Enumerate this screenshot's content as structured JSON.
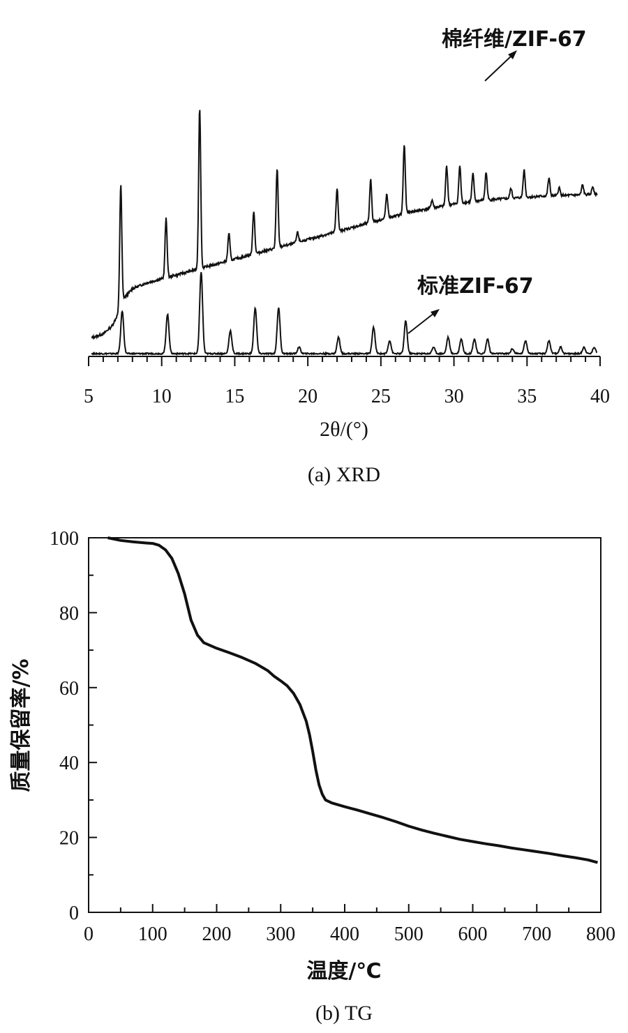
{
  "figure": {
    "caption_a": "(a)  XRD",
    "caption_b": "(b)  TG"
  },
  "chart_data": [
    {
      "type": "line",
      "title": "",
      "xlabel": "2θ/(°)",
      "ylabel": "",
      "xlim": [
        5,
        40
      ],
      "xticks": [
        5,
        10,
        15,
        20,
        25,
        30,
        35,
        40
      ],
      "yticks_shown": false,
      "grid": false,
      "series": [
        {
          "name": "棉纤维/ZIF-67",
          "baseline": [
            [
              5.2,
              0.02
            ],
            [
              6.0,
              0.04
            ],
            [
              6.6,
              0.08
            ],
            [
              7.0,
              0.14
            ],
            [
              7.4,
              0.22
            ],
            [
              8.0,
              0.27
            ],
            [
              9.0,
              0.3
            ],
            [
              10.5,
              0.33
            ],
            [
              12.0,
              0.36
            ],
            [
              13.5,
              0.39
            ],
            [
              15.0,
              0.42
            ],
            [
              16.5,
              0.45
            ],
            [
              18.0,
              0.48
            ],
            [
              19.5,
              0.51
            ],
            [
              21.0,
              0.54
            ],
            [
              22.5,
              0.57
            ],
            [
              24.0,
              0.6
            ],
            [
              25.5,
              0.63
            ],
            [
              27.0,
              0.66
            ],
            [
              28.5,
              0.68
            ],
            [
              30.0,
              0.7
            ],
            [
              32.0,
              0.72
            ],
            [
              34.0,
              0.73
            ],
            [
              36.0,
              0.74
            ],
            [
              38.0,
              0.745
            ],
            [
              39.8,
              0.75
            ]
          ],
          "peaks": [
            [
              7.2,
              0.62
            ],
            [
              10.3,
              0.3
            ],
            [
              12.6,
              0.82
            ],
            [
              14.6,
              0.14
            ],
            [
              16.3,
              0.22
            ],
            [
              17.9,
              0.4
            ],
            [
              19.3,
              0.05
            ],
            [
              22.0,
              0.22
            ],
            [
              24.3,
              0.22
            ],
            [
              25.4,
              0.12
            ],
            [
              26.6,
              0.35
            ],
            [
              28.5,
              0.04
            ],
            [
              29.5,
              0.2
            ],
            [
              30.4,
              0.19
            ],
            [
              31.3,
              0.14
            ],
            [
              32.2,
              0.14
            ],
            [
              33.9,
              0.05
            ],
            [
              34.8,
              0.14
            ],
            [
              36.5,
              0.09
            ],
            [
              37.2,
              0.04
            ],
            [
              38.8,
              0.05
            ],
            [
              39.5,
              0.04
            ]
          ]
        },
        {
          "name": "标准ZIF-67",
          "baseline": [
            [
              5.2,
              0.0
            ],
            [
              39.8,
              0.0
            ]
          ],
          "peaks": [
            [
              7.3,
              0.13
            ],
            [
              10.4,
              0.12
            ],
            [
              12.7,
              0.25
            ],
            [
              14.7,
              0.07
            ],
            [
              16.4,
              0.14
            ],
            [
              18.0,
              0.14
            ],
            [
              19.4,
              0.02
            ],
            [
              22.1,
              0.05
            ],
            [
              24.5,
              0.08
            ],
            [
              25.6,
              0.04
            ],
            [
              26.7,
              0.1
            ],
            [
              28.6,
              0.02
            ],
            [
              29.6,
              0.05
            ],
            [
              30.5,
              0.045
            ],
            [
              31.4,
              0.045
            ],
            [
              32.3,
              0.045
            ],
            [
              34.0,
              0.015
            ],
            [
              34.9,
              0.04
            ],
            [
              36.5,
              0.04
            ],
            [
              37.3,
              0.02
            ],
            [
              38.9,
              0.02
            ],
            [
              39.6,
              0.02
            ]
          ]
        }
      ]
    },
    {
      "type": "line",
      "title": "",
      "xlabel": "温度/℃",
      "ylabel": "质量保留率/%",
      "xlim": [
        0,
        800
      ],
      "ylim": [
        0,
        100
      ],
      "xticks": [
        0,
        100,
        200,
        300,
        400,
        500,
        600,
        700,
        800
      ],
      "yticks": [
        0,
        20,
        40,
        60,
        80,
        100
      ],
      "grid": false,
      "series": [
        {
          "name": "",
          "x": [
            30,
            50,
            70,
            90,
            100,
            110,
            120,
            130,
            140,
            150,
            160,
            170,
            180,
            200,
            220,
            240,
            260,
            280,
            290,
            300,
            310,
            320,
            330,
            340,
            345,
            350,
            355,
            360,
            365,
            370,
            380,
            400,
            420,
            440,
            460,
            480,
            500,
            520,
            540,
            560,
            580,
            600,
            620,
            640,
            660,
            680,
            700,
            720,
            740,
            760,
            780,
            795
          ],
          "y": [
            100,
            99.3,
            98.9,
            98.6,
            98.5,
            98.0,
            96.8,
            94.5,
            90.5,
            85.0,
            78.0,
            74.0,
            72.0,
            70.5,
            69.3,
            68.0,
            66.5,
            64.5,
            63.0,
            61.8,
            60.5,
            58.5,
            55.5,
            51.0,
            47.5,
            43.0,
            38.0,
            34.0,
            31.5,
            30.0,
            29.2,
            28.2,
            27.3,
            26.3,
            25.3,
            24.2,
            23.0,
            22.0,
            21.1,
            20.3,
            19.5,
            18.9,
            18.3,
            17.8,
            17.2,
            16.7,
            16.2,
            15.7,
            15.1,
            14.6,
            14.0,
            13.3
          ]
        }
      ]
    }
  ]
}
